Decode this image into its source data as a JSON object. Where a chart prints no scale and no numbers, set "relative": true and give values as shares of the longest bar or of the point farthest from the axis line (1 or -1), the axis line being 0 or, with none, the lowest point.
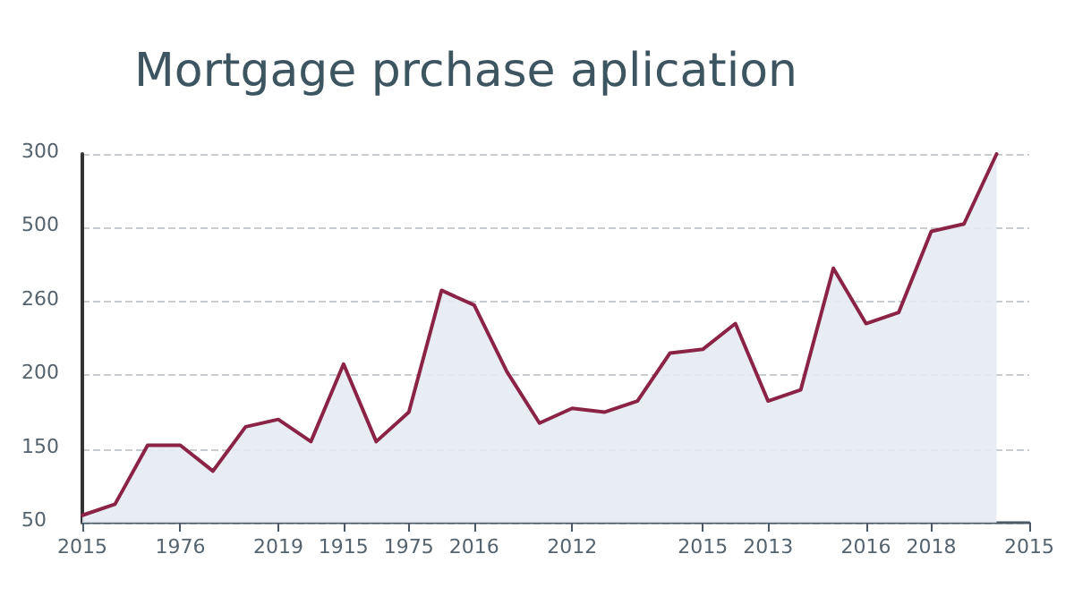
{
  "chart_data": {
    "type": "area",
    "title": "Mortgage prchase aplication",
    "relative": true,
    "categories": [
      "2015",
      null,
      null,
      "1976",
      null,
      null,
      "2019",
      null,
      "1915",
      null,
      "1975",
      null,
      "2016",
      null,
      null,
      "2012",
      null,
      null,
      null,
      "2015",
      null,
      "2013",
      null,
      null,
      "2016",
      null,
      "2018",
      null,
      null,
      "2015"
    ],
    "series": [
      {
        "color": "#8b2346",
        "values": [
          0.02,
          0.05,
          0.21,
          0.21,
          0.14,
          0.26,
          0.28,
          0.22,
          0.43,
          0.22,
          0.3,
          0.63,
          0.59,
          0.41,
          0.27,
          0.31,
          0.3,
          0.33,
          0.46,
          0.47,
          0.54,
          0.33,
          0.36,
          0.69,
          0.54,
          0.57,
          0.79,
          0.81,
          1,
          null
        ]
      }
    ],
    "annotations": [
      "300",
      "500",
      "260",
      "200",
      "150",
      "50"
    ],
    "grid": "y",
    "marker": "none",
    "line_style": "solid"
  }
}
